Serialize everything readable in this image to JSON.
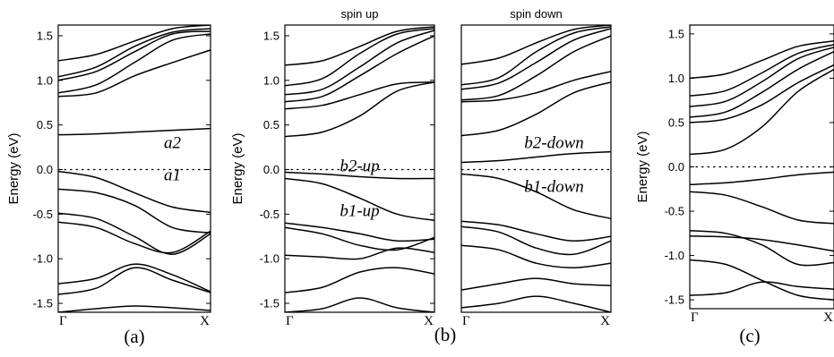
{
  "chart_data": [
    {
      "type": "line",
      "panel_label": "(a)",
      "top_label": "",
      "ylabel": "Energy (eV)",
      "xlabel": "",
      "x_ticks": [
        "Γ",
        "X"
      ],
      "ylim": [
        -1.6,
        1.62
      ],
      "y_ticks": [
        1.5,
        1.0,
        0.5,
        0.0,
        -0.5,
        -1.0,
        -1.5
      ],
      "fermi_level": 0.0,
      "annotations": [
        {
          "text": "a2",
          "x": 0.75,
          "y": 0.24
        },
        {
          "text": "a1",
          "x": 0.75,
          "y": -0.12
        }
      ],
      "series": [
        {
          "values": [
            1.22,
            1.29,
            1.44,
            1.58,
            1.62
          ]
        },
        {
          "values": [
            1.04,
            1.15,
            1.38,
            1.54,
            1.58
          ]
        },
        {
          "values": [
            1.0,
            1.1,
            1.32,
            1.52,
            1.55
          ]
        },
        {
          "values": [
            0.86,
            0.95,
            1.2,
            1.45,
            1.52
          ]
        },
        {
          "values": [
            0.82,
            0.86,
            1.05,
            1.2,
            1.34
          ]
        },
        {
          "values": [
            0.39,
            0.4,
            0.42,
            0.44,
            0.46
          ]
        },
        {
          "values": [
            -0.02,
            -0.09,
            -0.26,
            -0.42,
            -0.48
          ]
        },
        {
          "values": [
            -0.22,
            -0.26,
            -0.4,
            -0.65,
            -0.71
          ]
        },
        {
          "values": [
            -0.49,
            -0.55,
            -0.75,
            -0.95,
            -0.72
          ]
        },
        {
          "values": [
            -0.59,
            -0.65,
            -0.83,
            -0.93,
            -0.69
          ]
        },
        {
          "values": [
            -1.28,
            -1.22,
            -1.06,
            -1.18,
            -1.37
          ]
        },
        {
          "values": [
            -1.4,
            -1.33,
            -1.1,
            -1.24,
            -1.38
          ]
        },
        {
          "values": [
            -1.6,
            -1.56,
            -1.53,
            -1.55,
            -1.58
          ]
        }
      ]
    },
    {
      "type": "line",
      "panel_label": "",
      "top_label": "spin up",
      "ylabel": "Energy (eV)",
      "xlabel": "",
      "x_ticks": [
        "Γ",
        "X"
      ],
      "ylim": [
        -1.6,
        1.62
      ],
      "y_ticks": [
        1.5,
        1.0,
        0.5,
        0.0,
        -0.5,
        -1.0,
        -1.5
      ],
      "fermi_level": 0.0,
      "annotations": [
        {
          "text": "b2-up",
          "x": 0.5,
          "y": -0.02
        },
        {
          "text": "b1-up",
          "x": 0.5,
          "y": -0.52
        }
      ],
      "series": [
        {
          "values": [
            1.17,
            1.22,
            1.38,
            1.55,
            1.6
          ]
        },
        {
          "values": [
            0.94,
            1.02,
            1.3,
            1.52,
            1.58
          ]
        },
        {
          "values": [
            0.84,
            0.9,
            1.15,
            1.42,
            1.56
          ]
        },
        {
          "values": [
            0.76,
            0.82,
            1.05,
            1.3,
            1.5
          ]
        },
        {
          "values": [
            0.68,
            0.72,
            0.84,
            0.96,
            0.98
          ]
        },
        {
          "values": [
            0.37,
            0.42,
            0.6,
            0.88,
            0.98
          ]
        },
        {
          "values": [
            -0.03,
            -0.05,
            -0.08,
            -0.1,
            -0.1
          ]
        },
        {
          "values": [
            -0.1,
            -0.16,
            -0.32,
            -0.5,
            -0.57
          ]
        },
        {
          "values": [
            -0.6,
            -0.65,
            -0.72,
            -0.8,
            -0.78
          ]
        },
        {
          "values": [
            -0.65,
            -0.72,
            -0.85,
            -0.9,
            -0.76
          ]
        },
        {
          "values": [
            -0.96,
            -0.98,
            -1.0,
            -0.88,
            -0.93
          ]
        },
        {
          "values": [
            -1.38,
            -1.32,
            -1.15,
            -1.1,
            -1.17
          ]
        },
        {
          "values": [
            -1.6,
            -1.56,
            -1.44,
            -1.55,
            -1.6
          ]
        }
      ]
    },
    {
      "type": "line",
      "panel_label": "(b)",
      "top_label": "spin down",
      "ylabel": "",
      "xlabel": "",
      "x_ticks": [
        "Γ",
        "X"
      ],
      "ylim": [
        -1.6,
        1.62
      ],
      "y_ticks": [],
      "fermi_level": 0.0,
      "annotations": [
        {
          "text": "b2-down",
          "x": 0.62,
          "y": 0.24
        },
        {
          "text": "b1-down",
          "x": 0.62,
          "y": -0.25
        }
      ],
      "series": [
        {
          "values": [
            1.18,
            1.25,
            1.42,
            1.57,
            1.62
          ]
        },
        {
          "values": [
            0.95,
            1.03,
            1.32,
            1.53,
            1.6
          ]
        },
        {
          "values": [
            0.9,
            0.97,
            1.2,
            1.45,
            1.58
          ]
        },
        {
          "values": [
            0.78,
            0.83,
            1.05,
            1.32,
            1.5
          ]
        },
        {
          "values": [
            0.76,
            0.78,
            0.86,
            1.0,
            1.1
          ]
        },
        {
          "values": [
            0.38,
            0.44,
            0.62,
            0.86,
            0.98
          ]
        },
        {
          "values": [
            0.08,
            0.1,
            0.14,
            0.18,
            0.2
          ]
        },
        {
          "values": [
            -0.05,
            -0.1,
            -0.25,
            -0.45,
            -0.55
          ]
        },
        {
          "values": [
            -0.58,
            -0.62,
            -0.72,
            -0.8,
            -0.75
          ]
        },
        {
          "values": [
            -0.64,
            -0.7,
            -0.88,
            -0.95,
            -0.8
          ]
        },
        {
          "values": [
            -0.85,
            -0.9,
            -1.05,
            -1.1,
            -1.05
          ]
        },
        {
          "values": [
            -1.35,
            -1.28,
            -1.22,
            -1.28,
            -1.3
          ]
        },
        {
          "values": [
            -1.55,
            -1.5,
            -1.42,
            -1.5,
            -1.6
          ]
        }
      ]
    },
    {
      "type": "line",
      "panel_label": "(c)",
      "top_label": "",
      "ylabel": "Energy (eV)",
      "xlabel": "",
      "x_ticks": [
        "Γ",
        "X"
      ],
      "ylim": [
        -1.6,
        1.6
      ],
      "y_ticks": [
        1.5,
        1.0,
        0.5,
        0.0,
        -0.5,
        -1.0,
        -1.5
      ],
      "fermi_level": 0.0,
      "annotations": [],
      "series": [
        {
          "values": [
            1.0,
            1.05,
            1.2,
            1.36,
            1.42
          ]
        },
        {
          "values": [
            0.8,
            0.86,
            1.06,
            1.28,
            1.38
          ]
        },
        {
          "values": [
            0.68,
            0.74,
            0.96,
            1.22,
            1.35
          ]
        },
        {
          "values": [
            0.56,
            0.62,
            0.84,
            1.1,
            1.3
          ]
        },
        {
          "values": [
            0.5,
            0.54,
            0.7,
            0.95,
            1.15
          ]
        },
        {
          "values": [
            0.14,
            0.2,
            0.45,
            0.85,
            1.1
          ]
        },
        {
          "values": [
            -0.2,
            -0.18,
            -0.14,
            -0.09,
            -0.06
          ]
        },
        {
          "values": [
            -0.28,
            -0.32,
            -0.45,
            -0.6,
            -0.64
          ]
        },
        {
          "values": [
            -0.72,
            -0.75,
            -0.88,
            -1.1,
            -1.08
          ]
        },
        {
          "values": [
            -0.78,
            -0.79,
            -0.82,
            -0.88,
            -0.95
          ]
        },
        {
          "values": [
            -1.05,
            -1.1,
            -1.28,
            -1.45,
            -1.5
          ]
        },
        {
          "values": [
            -1.45,
            -1.42,
            -1.3,
            -1.35,
            -1.38
          ]
        }
      ]
    }
  ],
  "colors": {
    "line": "#000000",
    "background": "#ffffff"
  }
}
